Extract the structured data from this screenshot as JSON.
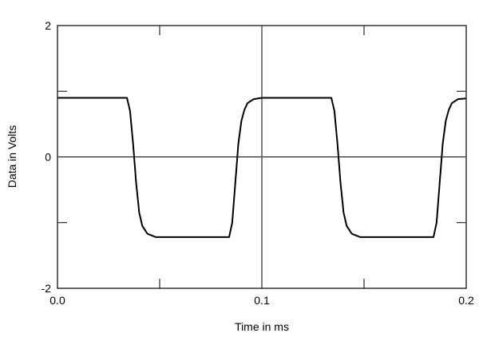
{
  "chart_data": {
    "type": "line",
    "x_label": "Time in ms",
    "y_label": "Data in Volts",
    "x": [
      0,
      0.034,
      0.0355,
      0.037,
      0.0385,
      0.04,
      0.0415,
      0.044,
      0.048,
      0.084,
      0.0855,
      0.087,
      0.0885,
      0.09,
      0.0915,
      0.093,
      0.096,
      0.1,
      0.134,
      0.1355,
      0.137,
      0.1385,
      0.14,
      0.1415,
      0.144,
      0.148,
      0.184,
      0.1855,
      0.187,
      0.1885,
      0.19,
      0.1915,
      0.193,
      0.196,
      0.2
    ],
    "values": [
      0.9,
      0.9,
      0.7,
      0.2,
      -0.4,
      -0.85,
      -1.05,
      -1.17,
      -1.22,
      -1.22,
      -1.0,
      -0.4,
      0.2,
      0.55,
      0.72,
      0.82,
      0.88,
      0.9,
      0.9,
      0.7,
      0.2,
      -0.4,
      -0.85,
      -1.05,
      -1.17,
      -1.22,
      -1.22,
      -1.0,
      -0.4,
      0.2,
      0.55,
      0.72,
      0.82,
      0.88,
      0.89
    ],
    "color": "#000000",
    "xlim": [
      0,
      0.2
    ],
    "xticks": [
      {
        "value": 0,
        "label": "0.0"
      },
      0.1,
      0.2
    ],
    "xminorticks": [
      0.05,
      0.15
    ],
    "ylim": [
      -2,
      2
    ],
    "yticks": [
      -2,
      0,
      2
    ],
    "yminorticks": [
      -1,
      1
    ],
    "grid": true
  }
}
